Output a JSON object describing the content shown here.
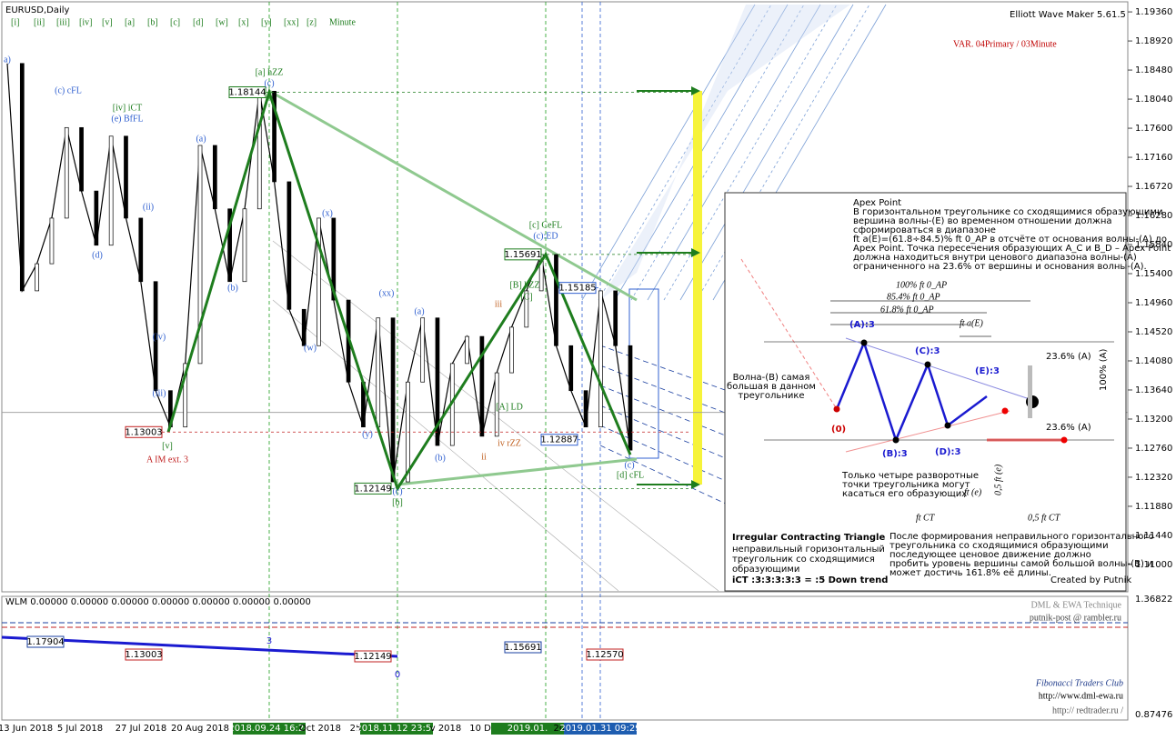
{
  "chart_data": {
    "type": "line",
    "symbol": "EURUSD,Daily",
    "indicator": "Elliott Wave Maker 5.61.5",
    "variant": "VAR. 04Primary / 03Minute",
    "toolbar": [
      "[i]",
      "[ii]",
      "[iii]",
      "[iv]",
      "[v]",
      "[a]",
      "[b]",
      "[c]",
      "[d]",
      "[w]",
      "[x]",
      "[y]",
      "[xx]",
      "[z]",
      "Minute"
    ],
    "xtick_labels": [
      "13 Jun 2018",
      "5 Jul 2018",
      "27 Jul 2018",
      "20 Aug 2018",
      "2018.09.24 16:24",
      "Oct 2018",
      "25",
      "2018.11.12 23:54",
      "v 2018",
      "10 Dec 201",
      "2019.01.",
      "201",
      "2019.01.31 09:29"
    ],
    "ylim": [
      1.106,
      1.1954
    ],
    "yticks": [
      {
        "value": 1.1936,
        "label": "1.19360"
      },
      {
        "value": 1.1892,
        "label": "1.18920"
      },
      {
        "value": 1.1848,
        "label": "1.18480"
      },
      {
        "value": 1.1804,
        "label": "1.18040"
      },
      {
        "value": 1.176,
        "label": "1.17600"
      },
      {
        "value": 1.1716,
        "label": "1.17160"
      },
      {
        "value": 1.1672,
        "label": "1.16720"
      },
      {
        "value": 1.1628,
        "label": "1.16280"
      },
      {
        "value": 1.1584,
        "label": "1.15840"
      },
      {
        "value": 1.154,
        "label": "1.15400"
      },
      {
        "value": 1.1496,
        "label": "1.14960"
      },
      {
        "value": 1.1452,
        "label": "1.14520"
      },
      {
        "value": 1.1408,
        "label": "1.14080"
      },
      {
        "value": 1.1364,
        "label": "1.13640"
      },
      {
        "value": 1.132,
        "label": "1.13200"
      },
      {
        "value": 1.1276,
        "label": "1.12760"
      },
      {
        "value": 1.1232,
        "label": "1.12320"
      },
      {
        "value": 1.1188,
        "label": "1.11880"
      },
      {
        "value": 1.1144,
        "label": "1.11440"
      },
      {
        "value": 1.11,
        "label": "1.11000"
      }
    ],
    "series": [
      {
        "name": "EURUSD",
        "color": "#000000",
        "values": [
          1.1858,
          1.1514,
          1.1555,
          1.1624,
          1.1761,
          1.1665,
          1.1583,
          1.1748,
          1.1624,
          1.1528,
          1.1363,
          1.1308,
          1.1404,
          1.1734,
          1.1638,
          1.1528,
          1.1638,
          1.1816,
          1.1679,
          1.1486,
          1.1431,
          1.1624,
          1.15,
          1.1376,
          1.1308,
          1.1473,
          1.1225,
          1.1376,
          1.1473,
          1.128,
          1.1404,
          1.1445,
          1.1294,
          1.139,
          1.1459,
          1.1514,
          1.1569,
          1.1431,
          1.1363,
          1.1308,
          1.1514,
          1.1431,
          1.1273
        ]
      }
    ],
    "last_price": 1.133,
    "zigzag": {
      "color": "#1e7d1e",
      "values": [
        1.13003,
        1.18144,
        1.12149,
        1.15691,
        1.1266
      ]
    },
    "price_boxes": [
      1.18144,
      1.15691,
      1.13003,
      1.12149,
      1.15185,
      1.12887
    ],
    "wave_labels": [
      "a)",
      "(c) cFL",
      "[iv] iCT",
      "(e) BfFL",
      "[a] hZZ",
      "(c)",
      "(a)",
      "(b)",
      "(d)",
      "(ii)",
      "(iv)",
      "(iii)",
      "[v]",
      "A IM ext. 3",
      "(x)",
      "(w)",
      "(y)",
      "(xx)",
      "(c)",
      "[b]",
      "[c] CeFL",
      "(c):ED",
      "[B] hZZ",
      "[C]",
      "[A] LD",
      "iv rZZ",
      "(a)",
      "(b)",
      "(c)",
      "[d] cFL",
      "ii",
      "iii"
    ],
    "inset": {
      "apex_title": "Apex Point",
      "apex_text": [
        "В горизонтальном треугольнике со сходящимися образующими",
        "вершина волны-(E) во временном отношении должна",
        "сформироваться в диапазоне",
        "ft a(E)=(61.8÷84.5)% ft 0_AP в отсчёте от основания волны-(A) до",
        "Apex Point. Точка пересечения образующих A_C и B_D – Apex Point",
        "должна находиться внутри ценового диапазона волны-(A)",
        "ограниченного на 23.6% от вершины и основания волны-(A)."
      ],
      "fib_labels": [
        "100% ft 0_AP",
        "85.4% ft 0_AP",
        "61.8% ft 0_AP",
        "ft a(E)"
      ],
      "points": [
        "(0)",
        "(A):3",
        "(B):3",
        "(C):3",
        "(D):3",
        "(E):3"
      ],
      "ratios": [
        "23.6% (A)",
        "23.6% (A)",
        "100% (A)"
      ],
      "wave_b_note": [
        "Волна-(B) самая",
        "большая в данном",
        "треугольнике"
      ],
      "touch_note": [
        "Только четыре разворотные",
        "точки треугольника могут",
        "касаться его образующих"
      ],
      "time_labels": [
        "ft (e)",
        "0,5 ft (e)",
        "ft CT",
        "0,5 ft CT"
      ],
      "title": "Irregular Contracting Triangle",
      "subtitle": [
        "неправильный горизонтальный",
        "треугольник со сходящимися",
        "образующими"
      ],
      "formula": "iCT :3:3:3:3:3 = :5 Down trend",
      "after_note": [
        "После формирования  неправильного горизонтального",
        "треугольника со сходящимися образующими",
        "последующее ценовое движение должно",
        "пробить уровень вершины самой большой волны-(B) и",
        "может достичь 161.8% её длины."
      ],
      "credit": "Created by Putnik"
    },
    "subwindow": {
      "title": "WLM 0.00000 0.00000 0.00000 0.00000 0.00000 0.00000 0.00000",
      "ylim_labels": [
        1.36822,
        0.87476
      ],
      "boxes": [
        1.17904,
        1.13003,
        1.12149,
        1.15691,
        {
          "value": 1.1257,
          "label": "1.12570"
        }
      ],
      "marks": [
        "3",
        "0"
      ]
    },
    "credits": [
      "DML & EWA Technique",
      "putnik-post @ rambler.ru",
      "Fibonacci    Traders    Club",
      "http://www.dml-ewa.ru",
      "http://  redtrader.ru  /"
    ]
  }
}
